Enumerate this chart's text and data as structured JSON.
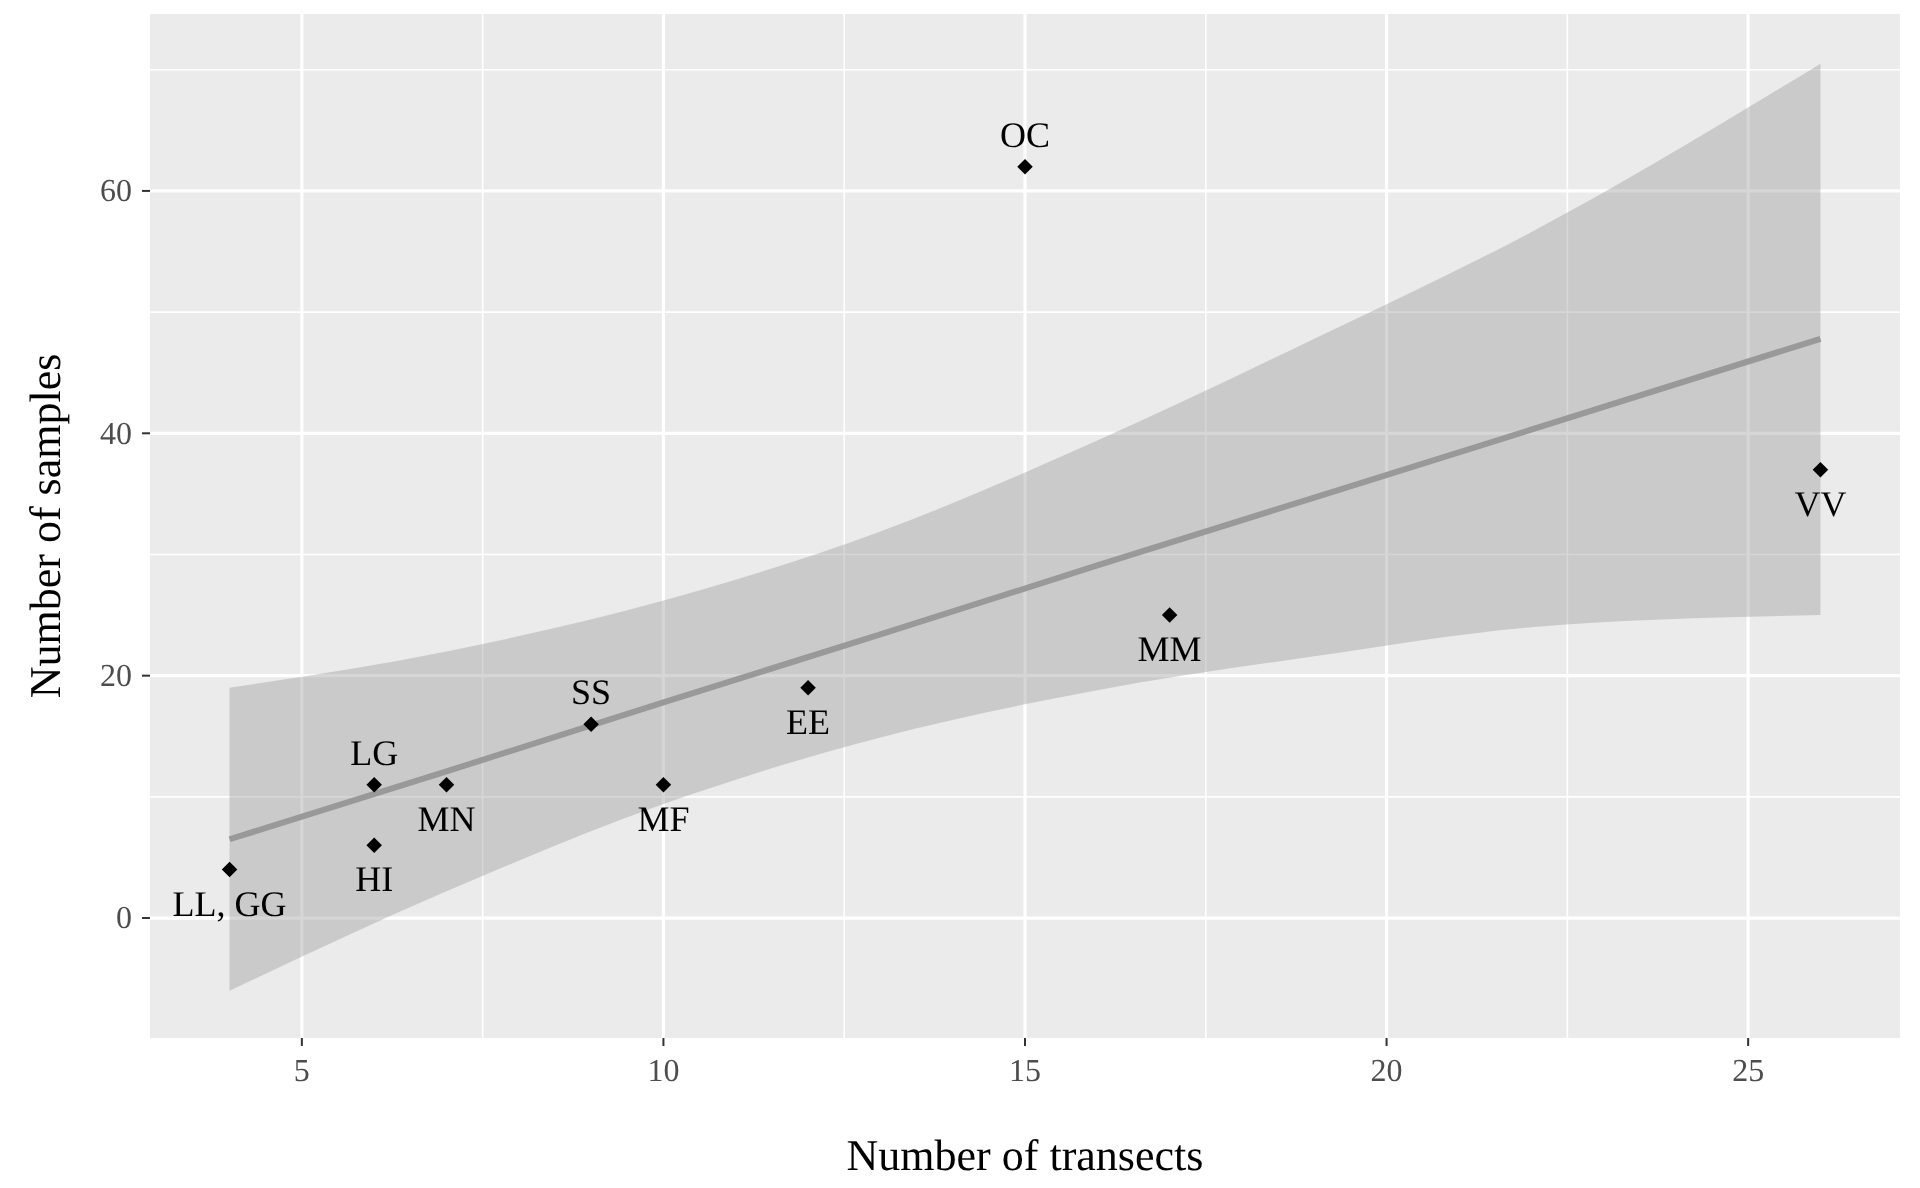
{
  "chart_data": {
    "type": "scatter",
    "xlabel": "Number of transects",
    "ylabel": "Number of samples",
    "xlim": [
      2.9,
      27.1
    ],
    "ylim": [
      -9.9,
      74.6
    ],
    "xticks": [
      5,
      10,
      15,
      20,
      25
    ],
    "yticks": [
      0,
      20,
      40,
      60
    ],
    "grid": true,
    "marker": "diamond",
    "series": [
      {
        "type": "line",
        "marker": "none",
        "color": "#999999",
        "x": [
          4,
          7,
          10,
          13,
          16,
          19,
          22,
          26
        ],
        "values": [
          6.5,
          12.1,
          17.8,
          23.4,
          29.1,
          34.7,
          40.3,
          47.8
        ],
        "lower": [
          -6,
          2.2,
          9.4,
          14.9,
          18.8,
          21.6,
          24.0,
          25
        ],
        "upper": [
          19,
          22.0,
          26.2,
          31.9,
          39.4,
          47.8,
          56.6,
          70.5
        ]
      },
      {
        "color": "#000000",
        "x": [
          4,
          6,
          6,
          7,
          9,
          10,
          12,
          15,
          17,
          26
        ],
        "values": [
          4,
          11,
          6,
          11,
          16,
          11,
          19,
          62,
          25,
          37
        ]
      }
    ],
    "annotations": [
      {
        "text": "LL, GG",
        "x": 4,
        "y": 4
      },
      {
        "text": "LG",
        "x": 6,
        "y": 11
      },
      {
        "text": "HI",
        "x": 6,
        "y": 6
      },
      {
        "text": "MN",
        "x": 7,
        "y": 11
      },
      {
        "text": "SS",
        "x": 9,
        "y": 16
      },
      {
        "text": "MF",
        "x": 10,
        "y": 11
      },
      {
        "text": "EE",
        "x": 12,
        "y": 19
      },
      {
        "text": "OC",
        "x": 15,
        "y": 62
      },
      {
        "text": "MM",
        "x": 17,
        "y": 25
      },
      {
        "text": "VV",
        "x": 26,
        "y": 37
      }
    ]
  }
}
